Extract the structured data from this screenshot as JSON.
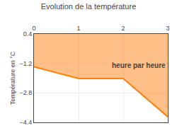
{
  "chart_data": {
    "type": "area",
    "title": "Evolution de la température",
    "ylabel": "Température en °C",
    "x": [
      0,
      1.0,
      2.0,
      3.0
    ],
    "values": [
      -1.38,
      -2.02,
      -2.02,
      -4.1
    ],
    "xlim": [
      0,
      3
    ],
    "xticks": [
      0,
      1,
      2,
      3
    ],
    "ylim": [
      -4.4,
      0.4
    ],
    "yticks": [
      0.4,
      -1.2,
      -2.8,
      -4.4
    ],
    "grid": true,
    "annotations": [
      {
        "text": "heure par heure",
        "x": 2.35,
        "y": -1.3
      }
    ]
  }
}
